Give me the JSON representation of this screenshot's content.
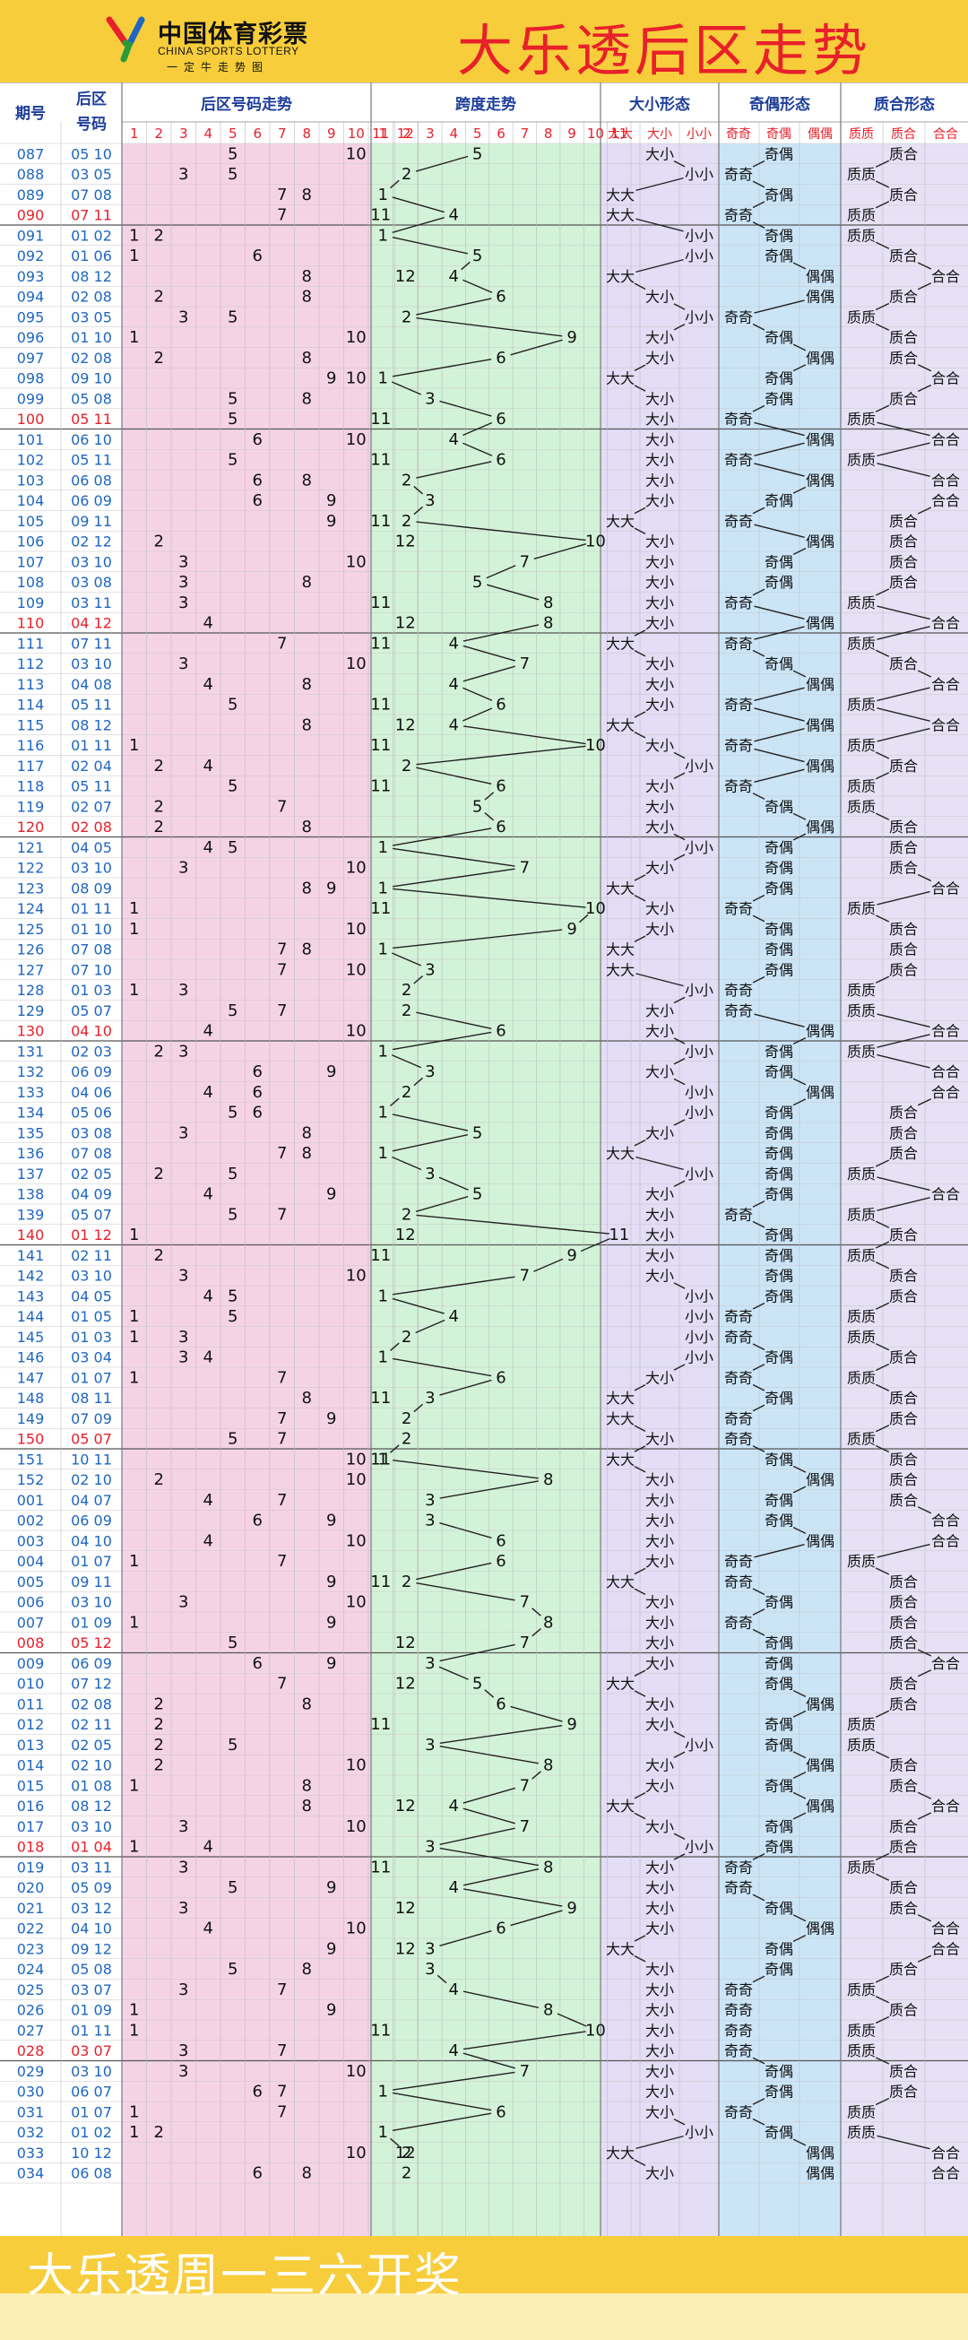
{
  "header": {
    "logo_cn": "中国体育彩票",
    "logo_en": "CHINA SPORTS LOTTERY",
    "logo_slogan": "一定牛走势图",
    "title": "大乐透后区走势"
  },
  "footer": {
    "text": "大乐透周一三六开奖"
  },
  "colors": {
    "header_bg": "#f7cd3b",
    "title_red": "#e8202a",
    "number_blue": "#1e66c0",
    "pink_zone": "#f5d3e6",
    "green_zone": "#d3f3d8",
    "purple_zone": "#e3ddf5",
    "blue_zone": "#cbe5f7",
    "lavender_zone": "#e6e1f5"
  },
  "chart_data": {
    "type": "table",
    "title": "大乐透后区走势",
    "columns": {
      "issue": "期号",
      "back_numbers": "后区号码",
      "back_trend": "后区号码走势",
      "span_trend": "跨度走势",
      "size_pattern": "大小形态",
      "parity_pattern": "奇偶形态",
      "prime_pattern": "质合形态"
    },
    "number_ticks": [
      "1",
      "2",
      "3",
      "4",
      "5",
      "6",
      "7",
      "8",
      "9",
      "10",
      "11",
      "12"
    ],
    "span_ticks": [
      "1",
      "2",
      "3",
      "4",
      "5",
      "6",
      "7",
      "8",
      "9",
      "10",
      "11"
    ],
    "pattern_labels": {
      "size": [
        "大大",
        "大小",
        "小小"
      ],
      "parity": [
        "奇奇",
        "奇偶",
        "偶偶"
      ],
      "prime": [
        "质质",
        "质合",
        "合合"
      ]
    },
    "red_issues": [
      "090",
      "100",
      "110",
      "120",
      "130",
      "140",
      "150",
      "008",
      "018",
      "028"
    ],
    "draws": [
      {
        "issue": "087",
        "nums": "05 10"
      },
      {
        "issue": "088",
        "nums": "03 05"
      },
      {
        "issue": "089",
        "nums": "07 08"
      },
      {
        "issue": "090",
        "nums": "07 11"
      },
      {
        "issue": "091",
        "nums": "01 02"
      },
      {
        "issue": "092",
        "nums": "01 06"
      },
      {
        "issue": "093",
        "nums": "08 12"
      },
      {
        "issue": "094",
        "nums": "02 08"
      },
      {
        "issue": "095",
        "nums": "03 05"
      },
      {
        "issue": "096",
        "nums": "01 10"
      },
      {
        "issue": "097",
        "nums": "02 08"
      },
      {
        "issue": "098",
        "nums": "09 10"
      },
      {
        "issue": "099",
        "nums": "05 08"
      },
      {
        "issue": "100",
        "nums": "05 11"
      },
      {
        "issue": "101",
        "nums": "06 10"
      },
      {
        "issue": "102",
        "nums": "05 11"
      },
      {
        "issue": "103",
        "nums": "06 08"
      },
      {
        "issue": "104",
        "nums": "06 09"
      },
      {
        "issue": "105",
        "nums": "09 11"
      },
      {
        "issue": "106",
        "nums": "02 12"
      },
      {
        "issue": "107",
        "nums": "03 10"
      },
      {
        "issue": "108",
        "nums": "03 08"
      },
      {
        "issue": "109",
        "nums": "03 11"
      },
      {
        "issue": "110",
        "nums": "04 12"
      },
      {
        "issue": "111",
        "nums": "07 11"
      },
      {
        "issue": "112",
        "nums": "03 10"
      },
      {
        "issue": "113",
        "nums": "04 08"
      },
      {
        "issue": "114",
        "nums": "05 11"
      },
      {
        "issue": "115",
        "nums": "08 12"
      },
      {
        "issue": "116",
        "nums": "01 11"
      },
      {
        "issue": "117",
        "nums": "02 04"
      },
      {
        "issue": "118",
        "nums": "05 11"
      },
      {
        "issue": "119",
        "nums": "02 07"
      },
      {
        "issue": "120",
        "nums": "02 08"
      },
      {
        "issue": "121",
        "nums": "04 05"
      },
      {
        "issue": "122",
        "nums": "03 10"
      },
      {
        "issue": "123",
        "nums": "08 09"
      },
      {
        "issue": "124",
        "nums": "01 11"
      },
      {
        "issue": "125",
        "nums": "01 10"
      },
      {
        "issue": "126",
        "nums": "07 08"
      },
      {
        "issue": "127",
        "nums": "07 10"
      },
      {
        "issue": "128",
        "nums": "01 03"
      },
      {
        "issue": "129",
        "nums": "05 07"
      },
      {
        "issue": "130",
        "nums": "04 10"
      },
      {
        "issue": "131",
        "nums": "02 03"
      },
      {
        "issue": "132",
        "nums": "06 09"
      },
      {
        "issue": "133",
        "nums": "04 06"
      },
      {
        "issue": "134",
        "nums": "05 06"
      },
      {
        "issue": "135",
        "nums": "03 08"
      },
      {
        "issue": "136",
        "nums": "07 08"
      },
      {
        "issue": "137",
        "nums": "02 05"
      },
      {
        "issue": "138",
        "nums": "04 09"
      },
      {
        "issue": "139",
        "nums": "05 07"
      },
      {
        "issue": "140",
        "nums": "01 12"
      },
      {
        "issue": "141",
        "nums": "02 11"
      },
      {
        "issue": "142",
        "nums": "03 10"
      },
      {
        "issue": "143",
        "nums": "04 05"
      },
      {
        "issue": "144",
        "nums": "01 05"
      },
      {
        "issue": "145",
        "nums": "01 03"
      },
      {
        "issue": "146",
        "nums": "03 04"
      },
      {
        "issue": "147",
        "nums": "01 07"
      },
      {
        "issue": "148",
        "nums": "08 11"
      },
      {
        "issue": "149",
        "nums": "07 09"
      },
      {
        "issue": "150",
        "nums": "05 07"
      },
      {
        "issue": "151",
        "nums": "10 11"
      },
      {
        "issue": "152",
        "nums": "02 10"
      },
      {
        "issue": "001",
        "nums": "04 07"
      },
      {
        "issue": "002",
        "nums": "06 09"
      },
      {
        "issue": "003",
        "nums": "04 10"
      },
      {
        "issue": "004",
        "nums": "01 07"
      },
      {
        "issue": "005",
        "nums": "09 11"
      },
      {
        "issue": "006",
        "nums": "03 10"
      },
      {
        "issue": "007",
        "nums": "01 09"
      },
      {
        "issue": "008",
        "nums": "05 12"
      },
      {
        "issue": "009",
        "nums": "06 09"
      },
      {
        "issue": "010",
        "nums": "07 12"
      },
      {
        "issue": "011",
        "nums": "02 08"
      },
      {
        "issue": "012",
        "nums": "02 11"
      },
      {
        "issue": "013",
        "nums": "02 05"
      },
      {
        "issue": "014",
        "nums": "02 10"
      },
      {
        "issue": "015",
        "nums": "01 08"
      },
      {
        "issue": "016",
        "nums": "08 12"
      },
      {
        "issue": "017",
        "nums": "03 10"
      },
      {
        "issue": "018",
        "nums": "01 04"
      },
      {
        "issue": "019",
        "nums": "03 11"
      },
      {
        "issue": "020",
        "nums": "05 09"
      },
      {
        "issue": "021",
        "nums": "03 12"
      },
      {
        "issue": "022",
        "nums": "04 10"
      },
      {
        "issue": "023",
        "nums": "09 12"
      },
      {
        "issue": "024",
        "nums": "05 08"
      },
      {
        "issue": "025",
        "nums": "03 07"
      },
      {
        "issue": "026",
        "nums": "01 09"
      },
      {
        "issue": "027",
        "nums": "01 11"
      },
      {
        "issue": "028",
        "nums": "03 07"
      },
      {
        "issue": "029",
        "nums": "03 10"
      },
      {
        "issue": "030",
        "nums": "06 07"
      },
      {
        "issue": "031",
        "nums": "01 07"
      },
      {
        "issue": "032",
        "nums": "01 02"
      },
      {
        "issue": "033",
        "nums": "10 12"
      },
      {
        "issue": "034",
        "nums": "06 08"
      }
    ]
  }
}
